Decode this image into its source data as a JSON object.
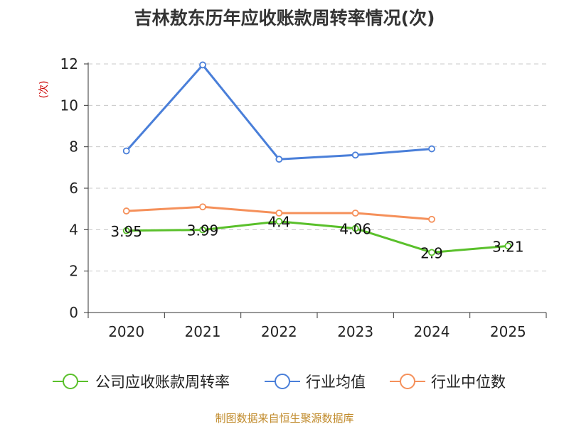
{
  "chart_data": {
    "type": "line",
    "title": "吉林敖东历年应收账款周转率情况(次)",
    "ylabel": "(次)",
    "xlabel": "",
    "categories": [
      "2020",
      "2021",
      "2022",
      "2023",
      "2024",
      "2025"
    ],
    "ylim": [
      0,
      12
    ],
    "yticks": [
      0,
      2,
      4,
      6,
      8,
      10,
      12
    ],
    "grid": true,
    "legend_position": "bottom",
    "series": [
      {
        "name": "公司应收账款周转率",
        "color": "#5ac02b",
        "values": [
          3.95,
          3.99,
          4.4,
          4.06,
          2.9,
          3.21
        ],
        "labels": [
          "3.95",
          "3.99",
          "4.4",
          "4.06",
          "2.9",
          "3.21"
        ]
      },
      {
        "name": "行业均值",
        "color": "#4a7fd9",
        "values": [
          7.8,
          11.95,
          7.4,
          7.6,
          7.9,
          null
        ]
      },
      {
        "name": "行业中位数",
        "color": "#f5905a",
        "values": [
          4.9,
          5.1,
          4.8,
          4.8,
          4.5,
          null
        ]
      }
    ],
    "source": "制图数据来自恒生聚源数据库"
  }
}
